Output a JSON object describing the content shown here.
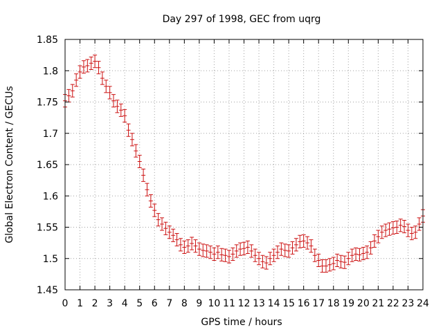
{
  "chart_data": {
    "type": "scatter",
    "title": "Day 297 of 1998, GEC from uqrg",
    "xlabel": "GPS time / hours",
    "ylabel": "Global Electron Content / GECUs",
    "xlim": [
      0,
      24
    ],
    "ylim": [
      1.45,
      1.85
    ],
    "x_ticks": [
      "0",
      "1",
      "2",
      "3",
      "4",
      "5",
      "6",
      "7",
      "8",
      "9",
      "10",
      "11",
      "12",
      "13",
      "14",
      "15",
      "16",
      "17",
      "18",
      "19",
      "20",
      "21",
      "22",
      "23",
      "24"
    ],
    "y_ticks": [
      "1.45",
      "1.5",
      "1.55",
      "1.6",
      "1.65",
      "1.7",
      "1.75",
      "1.8",
      "1.85"
    ],
    "grid": true,
    "series": [
      {
        "name": "GEC",
        "color": "#cc1010",
        "error": 0.01,
        "x": [
          0,
          0.25,
          0.5,
          0.75,
          1,
          1.25,
          1.5,
          1.75,
          2,
          2.25,
          2.5,
          2.75,
          3,
          3.25,
          3.5,
          3.75,
          4,
          4.25,
          4.5,
          4.75,
          5,
          5.25,
          5.5,
          5.75,
          6,
          6.25,
          6.5,
          6.75,
          7,
          7.25,
          7.5,
          7.75,
          8,
          8.25,
          8.5,
          8.75,
          9,
          9.25,
          9.5,
          9.75,
          10,
          10.25,
          10.5,
          10.75,
          11,
          11.25,
          11.5,
          11.75,
          12,
          12.25,
          12.5,
          12.75,
          13,
          13.25,
          13.5,
          13.75,
          14,
          14.25,
          14.5,
          14.75,
          15,
          15.25,
          15.5,
          15.75,
          16,
          16.25,
          16.5,
          16.75,
          17,
          17.25,
          17.5,
          17.75,
          18,
          18.25,
          18.5,
          18.75,
          19,
          19.25,
          19.5,
          19.75,
          20,
          20.25,
          20.5,
          20.75,
          21,
          21.25,
          21.5,
          21.75,
          22,
          22.25,
          22.5,
          22.75,
          23,
          23.25,
          23.5,
          23.75,
          24
        ],
        "y": [
          1.752,
          1.76,
          1.768,
          1.785,
          1.798,
          1.806,
          1.808,
          1.812,
          1.815,
          1.805,
          1.788,
          1.775,
          1.765,
          1.752,
          1.743,
          1.737,
          1.728,
          1.705,
          1.69,
          1.672,
          1.655,
          1.633,
          1.61,
          1.592,
          1.577,
          1.562,
          1.555,
          1.548,
          1.542,
          1.537,
          1.53,
          1.522,
          1.518,
          1.52,
          1.524,
          1.52,
          1.515,
          1.513,
          1.512,
          1.51,
          1.507,
          1.51,
          1.506,
          1.505,
          1.503,
          1.507,
          1.512,
          1.515,
          1.516,
          1.518,
          1.512,
          1.505,
          1.5,
          1.495,
          1.493,
          1.5,
          1.505,
          1.51,
          1.515,
          1.513,
          1.512,
          1.517,
          1.522,
          1.527,
          1.528,
          1.525,
          1.52,
          1.505,
          1.497,
          1.488,
          1.488,
          1.49,
          1.492,
          1.497,
          1.495,
          1.494,
          1.5,
          1.505,
          1.507,
          1.506,
          1.508,
          1.51,
          1.517,
          1.528,
          1.535,
          1.542,
          1.545,
          1.547,
          1.549,
          1.55,
          1.553,
          1.551,
          1.545,
          1.54,
          1.542,
          1.555,
          1.568
        ]
      }
    ]
  }
}
